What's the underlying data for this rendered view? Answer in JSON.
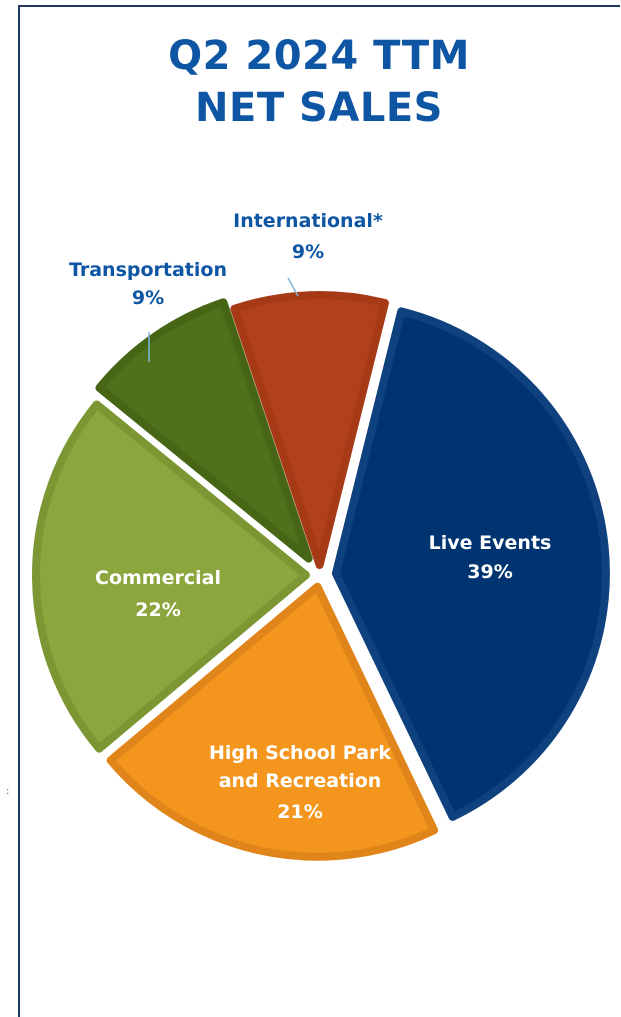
{
  "title_lines": [
    "Q2 2024 TTM",
    "NET SALES"
  ],
  "chart_data": {
    "type": "pie",
    "title": "Q2 2024 TTM NET SALES",
    "slices": [
      {
        "name": "Live Events",
        "lines": [
          "Live Events"
        ],
        "value": 39,
        "label": "39%",
        "color": "#003470",
        "edge": "#0F417E",
        "label_inside": true
      },
      {
        "name": "High School Park and Recreation",
        "lines": [
          "High School Park",
          "and Recreation"
        ],
        "value": 21,
        "label": "21%",
        "color": "#F4961E",
        "edge": "#E0851A",
        "label_inside": true
      },
      {
        "name": "Commercial",
        "lines": [
          "Commercial"
        ],
        "value": 22,
        "label": "22%",
        "color": "#8AA63C",
        "edge": "#7C9633",
        "label_inside": true
      },
      {
        "name": "Transportation",
        "lines": [
          "Transportation"
        ],
        "value": 9,
        "label": "9%",
        "color": "#4F711C",
        "edge": "#466616",
        "label_inside": false
      },
      {
        "name": "International*",
        "lines": [
          "International*"
        ],
        "value": 9,
        "label": "9%",
        "color": "#B2401C",
        "edge": "#A63A17",
        "label_inside": false
      }
    ]
  }
}
